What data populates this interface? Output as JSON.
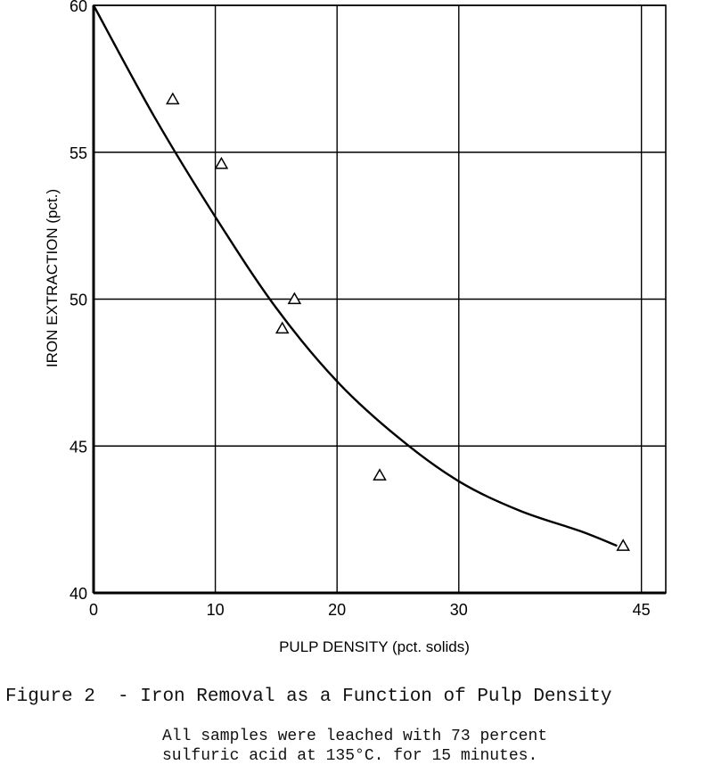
{
  "chart_data": {
    "type": "scatter",
    "xlabel": "PULP DENSITY (pct. solids)",
    "ylabel": "IRON EXTRACTION (pct.)",
    "xlim": [
      0,
      47
    ],
    "ylim": [
      40,
      60
    ],
    "x_ticks": [
      0,
      10,
      20,
      30,
      45
    ],
    "y_ticks": [
      40,
      45,
      50,
      55,
      60
    ],
    "grid": true,
    "series": [
      {
        "marker": "triangle",
        "points": [
          {
            "x": 6.5,
            "y": 56.8
          },
          {
            "x": 10.5,
            "y": 54.6
          },
          {
            "x": 16.5,
            "y": 50.0
          },
          {
            "x": 15.5,
            "y": 49.0
          },
          {
            "x": 23.5,
            "y": 44.0
          },
          {
            "x": 43.5,
            "y": 41.6
          }
        ]
      }
    ],
    "fit_curve": [
      {
        "x": 0,
        "y": 60.0
      },
      {
        "x": 5,
        "y": 56.2
      },
      {
        "x": 10,
        "y": 52.8
      },
      {
        "x": 15,
        "y": 49.7
      },
      {
        "x": 20,
        "y": 47.2
      },
      {
        "x": 25,
        "y": 45.3
      },
      {
        "x": 30,
        "y": 43.8
      },
      {
        "x": 35,
        "y": 42.8
      },
      {
        "x": 40,
        "y": 42.1
      },
      {
        "x": 43,
        "y": 41.6
      }
    ]
  },
  "caption": {
    "figure_label": "Figure 2",
    "title": "- Iron Removal as a Function of Pulp Density",
    "note_line1": "All samples were leached with 73 percent",
    "note_line2": "sulfuric acid at 135°C. for 15 minutes."
  },
  "colors": {
    "ink": "#000000",
    "background": "#ffffff"
  }
}
